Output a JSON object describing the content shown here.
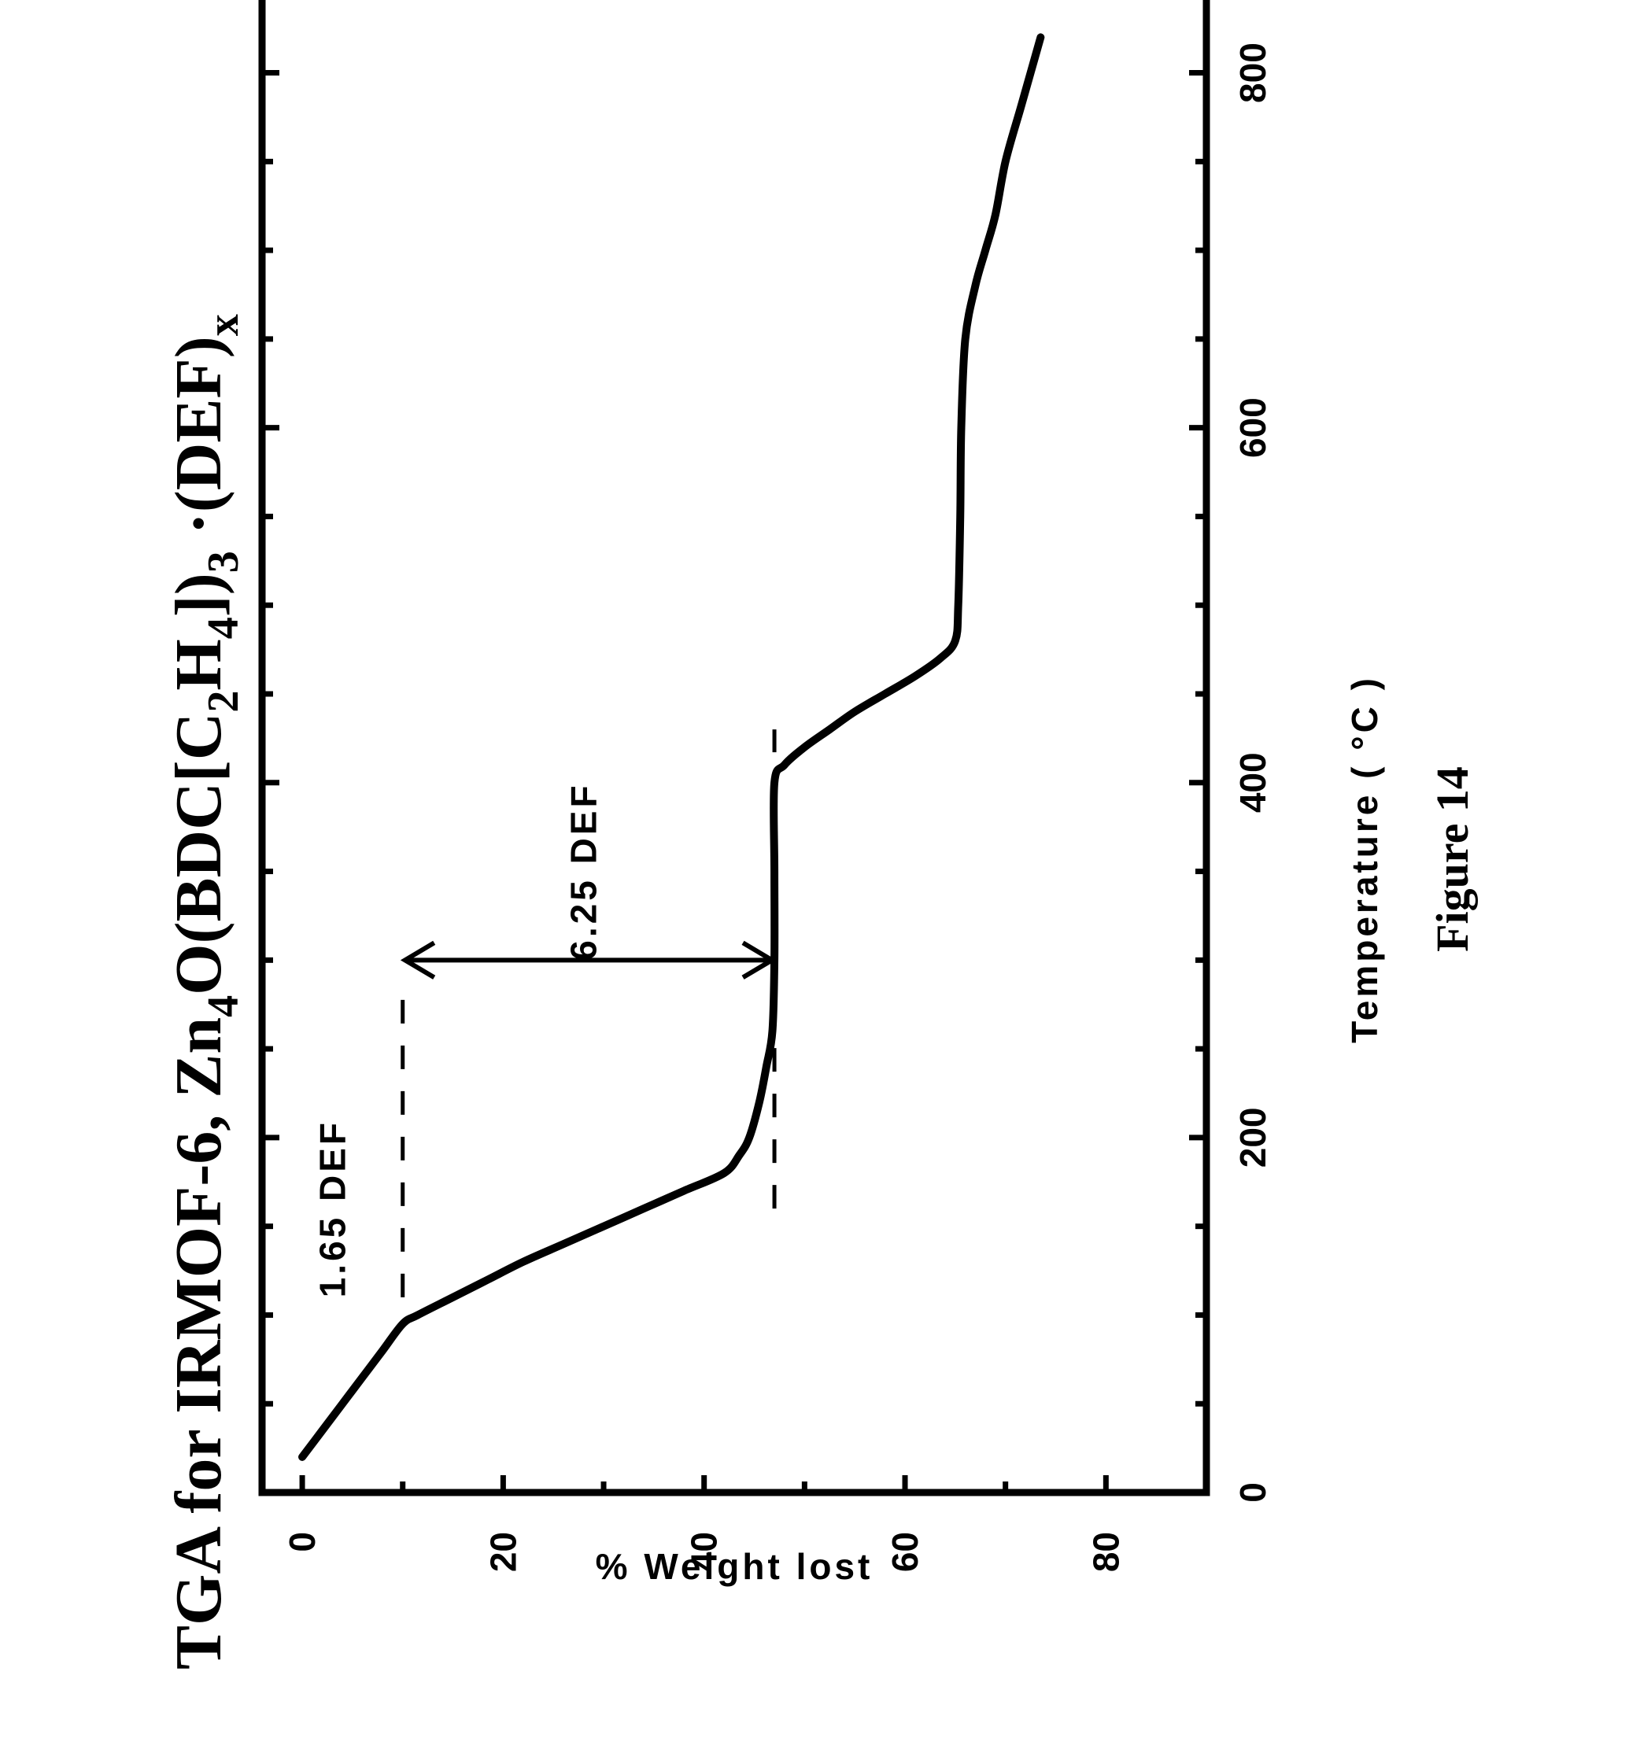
{
  "chart_data": {
    "type": "line",
    "title": {
      "segments": [
        {
          "text": "TGA for IRMOF-6,  Zn",
          "sub": false
        },
        {
          "text": "4",
          "sub": true
        },
        {
          "text": "O(BDC[C",
          "sub": false
        },
        {
          "text": "2",
          "sub": true
        },
        {
          "text": "H",
          "sub": false
        },
        {
          "text": "4",
          "sub": true
        },
        {
          "text": "])",
          "sub": false
        },
        {
          "text": "3",
          "sub": true
        },
        {
          "text": " ·(DEF)",
          "sub": false
        },
        {
          "text": "x",
          "sub": true
        }
      ]
    },
    "xlabel": "Temperature ( °C )",
    "ylabel": "% Weight lost",
    "xlim": [
      0,
      900
    ],
    "ylim": [
      -4,
      90
    ],
    "x_ticks_major": [
      0,
      200,
      400,
      600,
      800
    ],
    "x_tick_labels": [
      "0",
      "200",
      "400",
      "600",
      "800"
    ],
    "y_ticks_major": [
      0,
      20,
      40,
      60,
      80
    ],
    "y_tick_labels": [
      "0",
      "20",
      "40",
      "60",
      "80"
    ],
    "grid": false,
    "series": [
      {
        "color": "#000000",
        "x": [
          20,
          35,
          50,
          65,
          80,
          95,
          100,
          110,
          120,
          130,
          140,
          150,
          160,
          170,
          180,
          190,
          200,
          220,
          240,
          260,
          300,
          350,
          400,
          410,
          420,
          430,
          440,
          450,
          460,
          470,
          480,
          500,
          550,
          600,
          650,
          680,
          700,
          720,
          750,
          780,
          800,
          820
        ],
        "y": [
          0,
          2,
          4,
          6,
          8,
          10,
          11.5,
          15,
          18.5,
          22,
          26,
          30,
          34,
          38,
          42,
          43.5,
          44.5,
          45.5,
          46.2,
          46.8,
          47,
          47,
          47,
          48,
          50,
          52.5,
          55,
          58,
          61,
          63.5,
          65,
          65.3,
          65.5,
          65.6,
          66,
          67,
          68,
          69,
          70,
          71.5,
          72.5,
          73.5
        ]
      }
    ],
    "annotations": [
      {
        "text": "1.65 DEF",
        "x": 160,
        "y": 3
      },
      {
        "text": "6.25 DEF",
        "x": 350,
        "y": 28
      }
    ],
    "reference_lines": [
      {
        "orientation": "horizontal",
        "y": 10,
        "x_from": 110,
        "x_to": 290
      },
      {
        "orientation": "horizontal",
        "y": 47,
        "x_from": 160,
        "x_to": 430
      }
    ],
    "arrows": [
      {
        "x": 300,
        "y_from": 10,
        "y_to": 47
      }
    ]
  },
  "figure_caption": "Figure 14"
}
